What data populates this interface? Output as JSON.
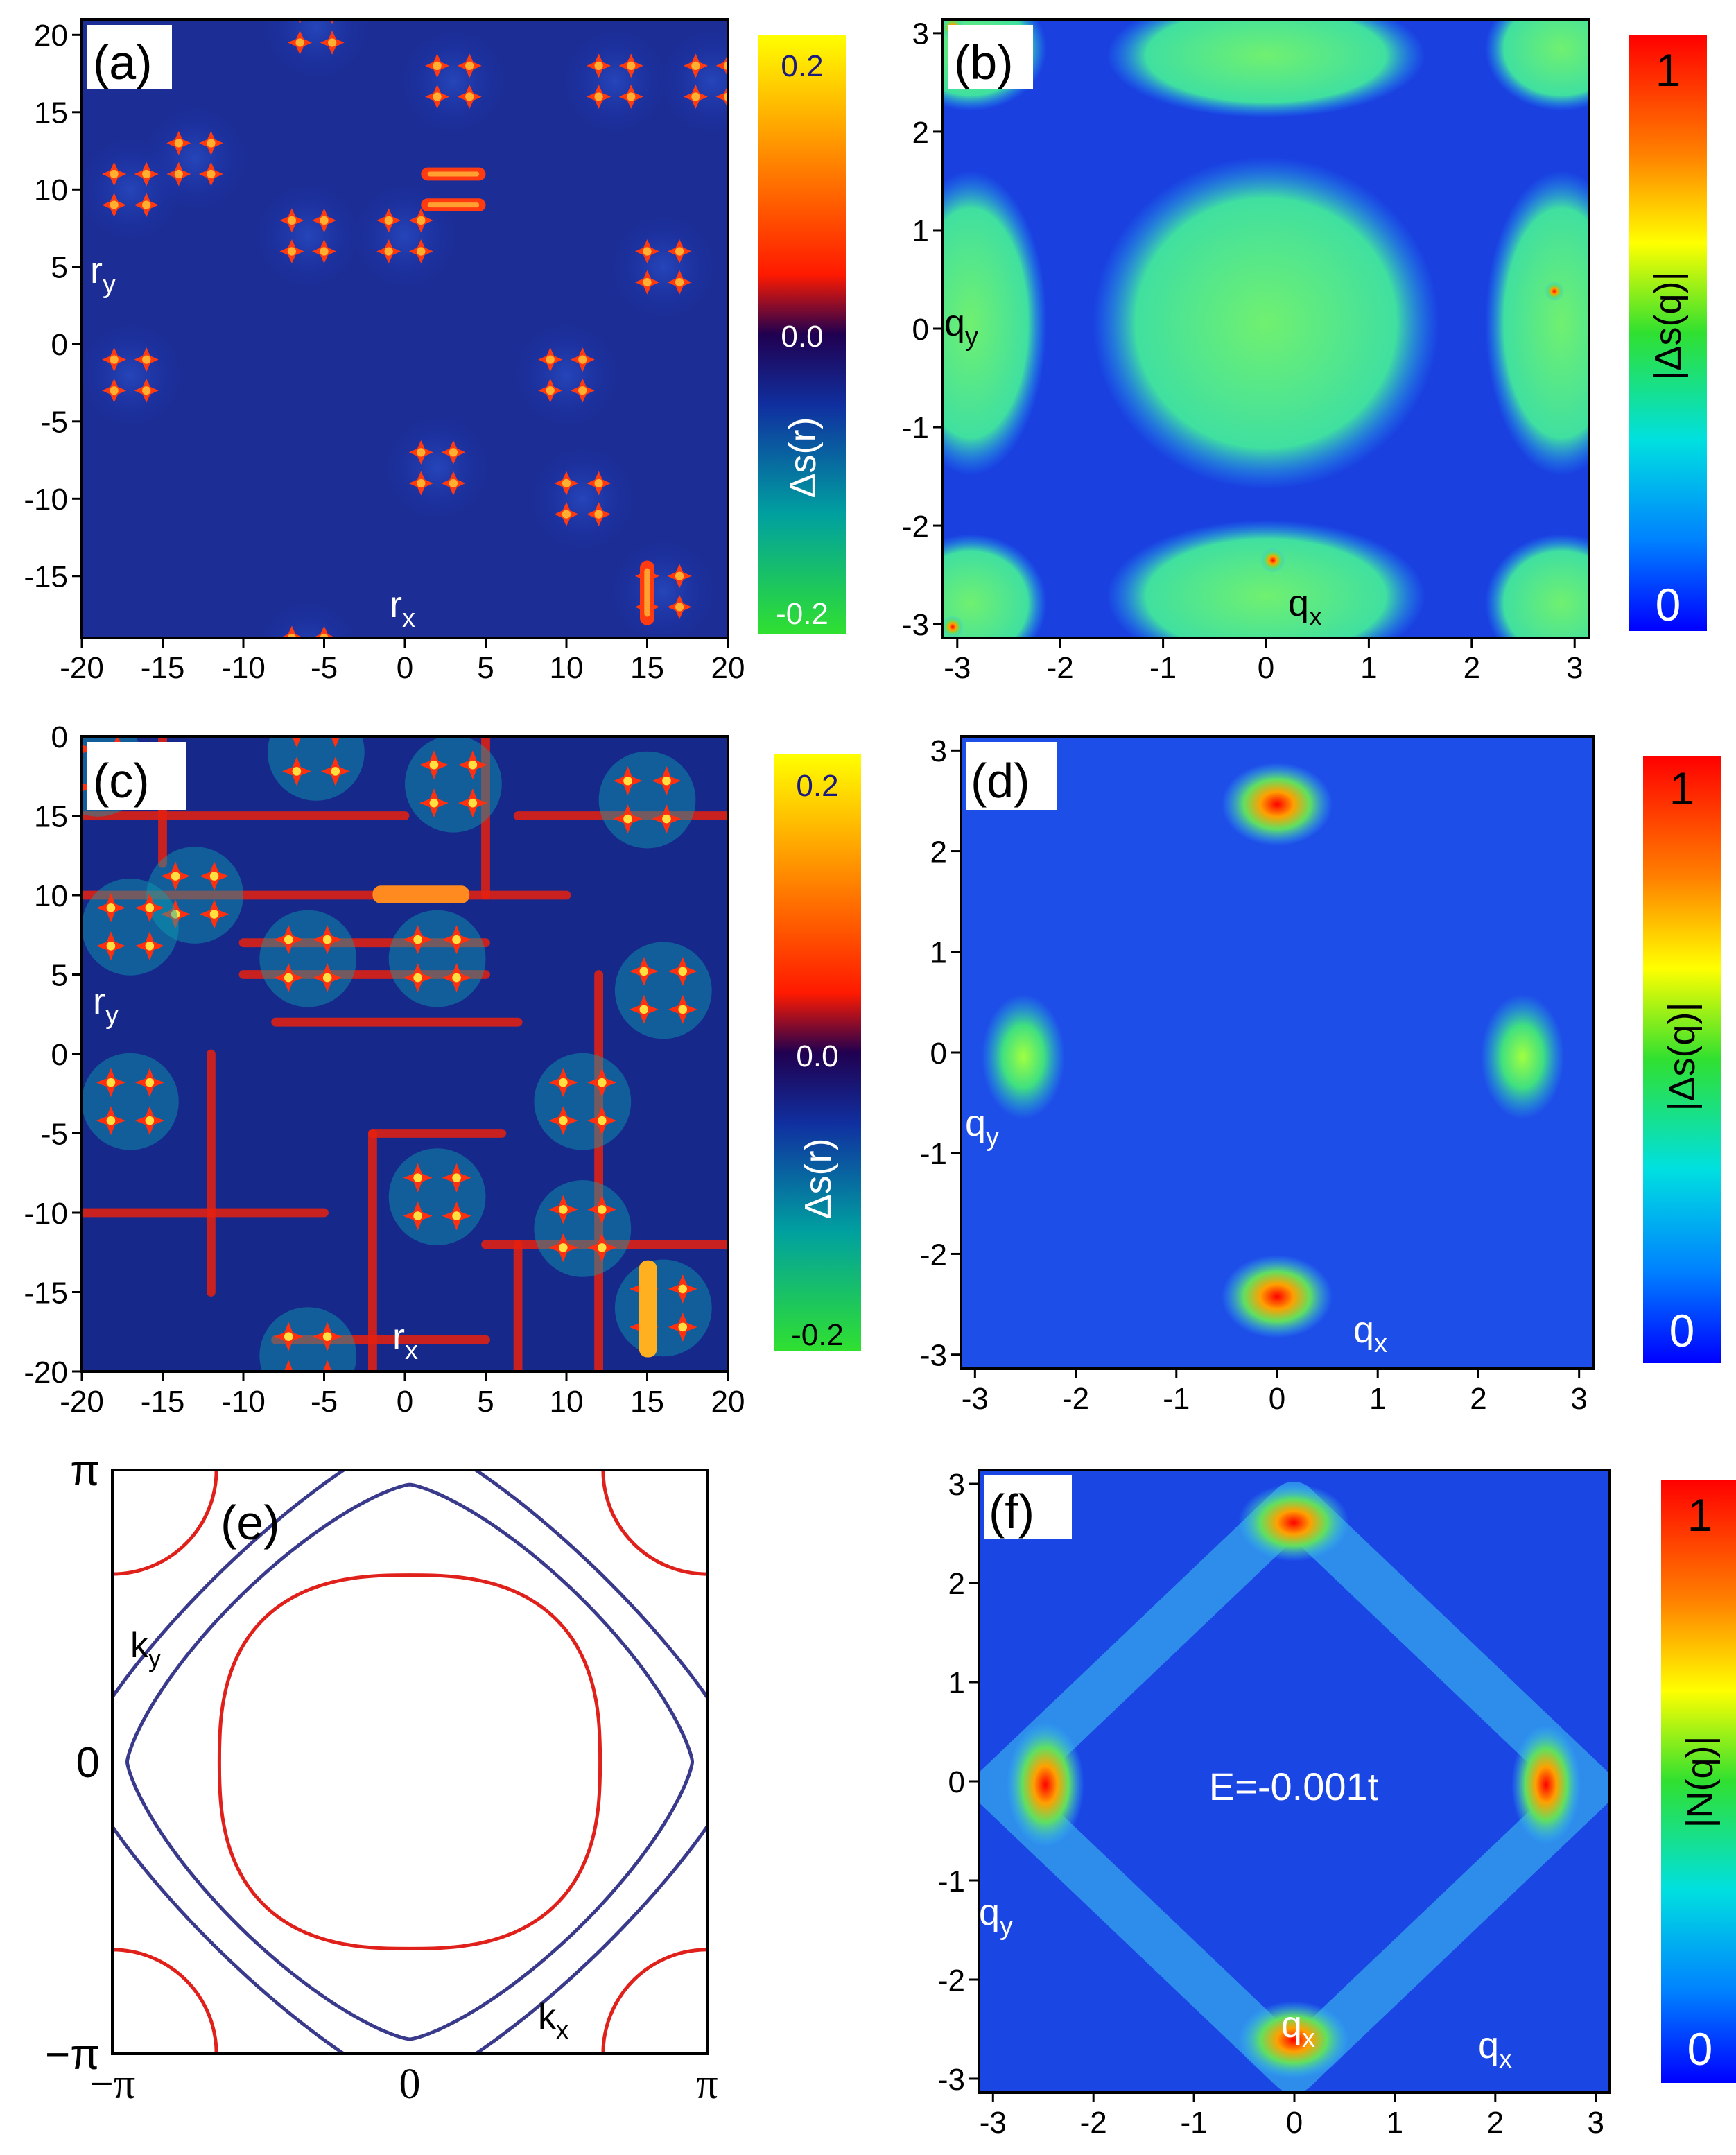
{
  "chart_data": [
    {
      "panel": "(a)",
      "type": "heatmap",
      "description_quantity": "Δs(r)",
      "xlabel": "r_x",
      "ylabel": "r_y",
      "xlim": [
        -20,
        20
      ],
      "ylim": [
        -19,
        21
      ],
      "xticks": [
        -20,
        -15,
        -10,
        -5,
        0,
        5,
        10,
        15,
        20
      ],
      "yticks": [
        -15,
        -10,
        -5,
        0,
        5,
        10,
        15,
        20
      ],
      "colorbar": {
        "label": "Δs(r)",
        "ticks": [
          "0.2",
          "0.0",
          "-0.2"
        ],
        "range": [
          -0.2,
          0.2
        ]
      },
      "features": {
        "quads": [
          [
            -5.5,
            20.5
          ],
          [
            3,
            17
          ],
          [
            13,
            17
          ],
          [
            19,
            17
          ],
          [
            -13,
            12
          ],
          [
            -17,
            10
          ],
          [
            -6,
            7
          ],
          [
            0,
            7
          ],
          [
            16,
            5
          ],
          [
            -17,
            -2
          ],
          [
            10,
            -2
          ],
          [
            2,
            -8
          ],
          [
            11,
            -10
          ],
          [
            16,
            -16
          ],
          [
            -6,
            -20
          ]
        ],
        "bars": [
          [
            3,
            11
          ],
          [
            3,
            9
          ]
        ],
        "vbars": [
          [
            15,
            -16
          ]
        ]
      }
    },
    {
      "panel": "(b)",
      "type": "heatmap",
      "description_quantity": "|Δs(q)|",
      "xlabel": "q_x",
      "ylabel": "q_y",
      "xlim": [
        -3.14,
        3.14
      ],
      "ylim": [
        -3.14,
        3.14
      ],
      "xticks": [
        -3,
        -2,
        -1,
        0,
        1,
        2,
        3
      ],
      "yticks": [
        -3,
        -2,
        -1,
        0,
        1,
        2,
        3
      ],
      "colorbar": {
        "label": "|Δs(q)|",
        "ticks": [
          "1",
          "0"
        ],
        "range": [
          0,
          1
        ]
      }
    },
    {
      "panel": "(c)",
      "type": "heatmap",
      "description_quantity": "Δs(r)",
      "xlabel": "r_x",
      "ylabel": "r_y",
      "xlim": [
        -20,
        20
      ],
      "ylim": [
        -20,
        20
      ],
      "xticks": [
        -20,
        -15,
        -10,
        -5,
        0,
        5,
        10,
        15,
        20
      ],
      "yticks": [
        -20,
        -15,
        -10,
        -5,
        0,
        5,
        10,
        15
      ],
      "ytick_top": "0",
      "colorbar": {
        "label": "Δs(r)",
        "ticks": [
          "0.2",
          "0.0",
          "-0.2"
        ],
        "range": [
          -0.2,
          0.2
        ]
      }
    },
    {
      "panel": "(d)",
      "type": "heatmap",
      "description_quantity": "|Δs(q)|",
      "xlabel": "q_x",
      "ylabel": "q_y",
      "xlim": [
        -3.14,
        3.14
      ],
      "ylim": [
        -3.14,
        3.14
      ],
      "xticks": [
        -3,
        -2,
        -1,
        0,
        1,
        2,
        3
      ],
      "yticks": [
        -3,
        -2,
        -1,
        0,
        1,
        2,
        3
      ],
      "colorbar": {
        "label": "|Δs(q)|",
        "ticks": [
          "1",
          "0"
        ],
        "range": [
          0,
          1
        ]
      }
    },
    {
      "panel": "(e)",
      "type": "line",
      "description_quantity": "Fermi surface contours",
      "xlabel": "k_x",
      "ylabel": "k_y",
      "xlim": [
        "−π",
        "π"
      ],
      "ylim": [
        "−π",
        "π"
      ],
      "xticks": [
        "−π",
        "0",
        "π"
      ],
      "yticks": [
        "−π",
        "0",
        "π"
      ],
      "series": [
        {
          "name": "red",
          "color": "#e0201a"
        },
        {
          "name": "blue",
          "color": "#3a3a8c"
        }
      ]
    },
    {
      "panel": "(f)",
      "type": "heatmap",
      "description_quantity": "|N(q)|",
      "xlabel": "q_x",
      "ylabel": "q_y",
      "xlim": [
        -3.14,
        3.14
      ],
      "ylim": [
        -3.14,
        3.14
      ],
      "xticks": [
        -3,
        -2,
        -1,
        0,
        1,
        2,
        3
      ],
      "yticks": [
        -3,
        -2,
        -1,
        0,
        1,
        2,
        3
      ],
      "annotation": "E=-0.001t",
      "colorbar": {
        "label": "|N(q)|",
        "ticks": [
          "1",
          "0"
        ],
        "range": [
          0,
          1
        ]
      }
    }
  ],
  "labels": {
    "a": "(a)",
    "b": "(b)",
    "c": "(c)",
    "d": "(d)",
    "e": "(e)",
    "f": "(f)",
    "rx": "r",
    "ry": "r",
    "qx": "q",
    "qy": "q",
    "kx": "k",
    "ky": "k",
    "sub_x": "x",
    "sub_y": "y",
    "cb_ds_r": "Δs(r)",
    "cb_ds_q": "|Δs(q)|",
    "cb_n_q": "|N(q)|",
    "energy": "E=-0.001t"
  }
}
